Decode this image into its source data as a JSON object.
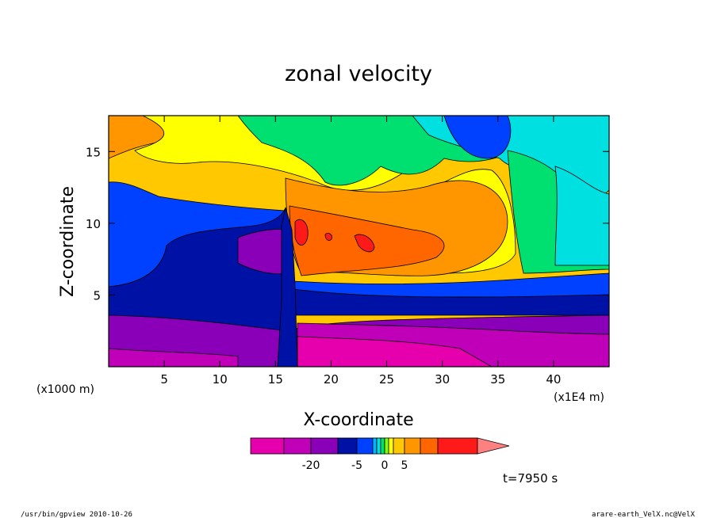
{
  "chart_data": {
    "type": "heatmap",
    "title": "zonal velocity",
    "xlabel": "X-coordinate",
    "ylabel": "Z-coordinate",
    "x_unit_left": "(x1000 m)",
    "x_unit_right": "(x1E4 m)",
    "xlim": [
      0,
      45
    ],
    "ylim": [
      0,
      17.5
    ],
    "x_ticks": [
      "5",
      "10",
      "15",
      "20",
      "25",
      "30",
      "35",
      "40"
    ],
    "y_ticks": [
      "5",
      "10",
      "15"
    ],
    "colorbar": {
      "colors": [
        "#e600ad",
        "#c000b8",
        "#8a00b8",
        "#0011a6",
        "#0040ff",
        "#00b4ff",
        "#00e0e0",
        "#00e070",
        "#7fff00",
        "#ffff00",
        "#ffc800",
        "#ff9600",
        "#ff6600",
        "#ff1a1a",
        "#ff8080"
      ],
      "tick_labels": [
        "-20",
        "-5",
        "0",
        "5"
      ]
    },
    "grid": false,
    "time_label": "t=7950 s"
  },
  "footer": {
    "left": "/usr/bin/gpview  2010-10-26",
    "right": "arare-earth_VelX.nc@VelX"
  }
}
